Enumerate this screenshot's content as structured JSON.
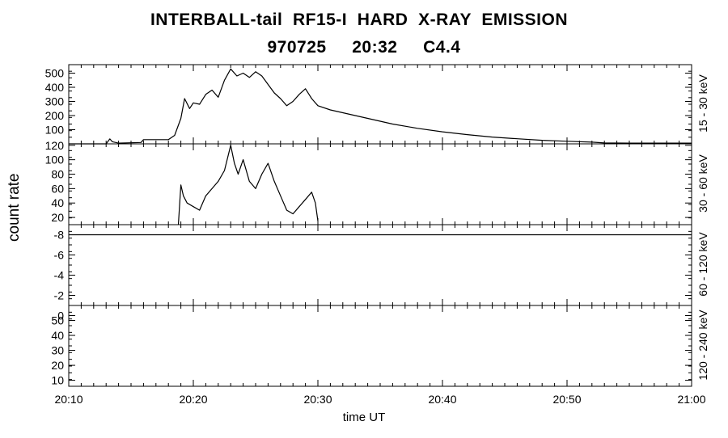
{
  "chart_data": {
    "type": "line",
    "title": "INTERBALL-tail  RF15-I  HARD  X-RAY  EMISSION",
    "subtitle": "970725     20:32     C4.4",
    "ylabel": "count rate",
    "xlabel": "time UT",
    "xlim": [
      "20:10",
      "21:00"
    ],
    "x_ticks": [
      "20:10",
      "20:20",
      "20:30",
      "20:40",
      "20:50",
      "21:00"
    ],
    "panels": [
      {
        "channel": "15 - 30 keV",
        "ylim": [
          0,
          560
        ],
        "y_ticks": [
          "100",
          "200",
          "300",
          "400",
          "500"
        ],
        "series": [
          {
            "x": [
              "20:10",
              "20:13",
              "20:13.3",
              "20:13.5",
              "20:14",
              "20:15.8",
              "20:16",
              "20:18",
              "20:18.5",
              "20:19",
              "20:19.3",
              "20:19.7",
              "20:20",
              "20:20.5",
              "20:21",
              "20:21.5",
              "20:22",
              "20:22.5",
              "20:23",
              "20:23.5",
              "20:24",
              "20:24.5",
              "20:25",
              "20:25.5",
              "20:26",
              "20:26.5",
              "20:27",
              "20:27.5",
              "20:28",
              "20:28.5",
              "20:29",
              "20:29.5",
              "20:30",
              "20:31",
              "20:32",
              "20:33",
              "20:34",
              "20:35",
              "20:36",
              "20:38",
              "20:40",
              "20:42",
              "20:44",
              "20:46",
              "20:48",
              "20:50",
              "20:52",
              "20:53",
              "20:55",
              "21:00"
            ],
            "y": [
              0,
              0,
              35,
              15,
              5,
              10,
              30,
              30,
              60,
              180,
              320,
              250,
              290,
              280,
              350,
              380,
              330,
              450,
              530,
              480,
              500,
              470,
              510,
              480,
              420,
              360,
              320,
              270,
              300,
              350,
              390,
              320,
              270,
              240,
              220,
              200,
              180,
              160,
              140,
              110,
              85,
              65,
              48,
              36,
              25,
              18,
              12,
              6,
              5,
              5
            ]
          }
        ]
      },
      {
        "channel": "30 - 60 keV",
        "ylim": [
          10,
          122
        ],
        "y_ticks": [
          "20",
          "40",
          "60",
          "80",
          "100",
          "120"
        ],
        "series": [
          {
            "x": [
              "20:18.8",
              "20:19",
              "20:19.2",
              "20:19.5",
              "20:20",
              "20:20.5",
              "20:21",
              "20:21.5",
              "20:22",
              "20:22.5",
              "20:23",
              "20:23.3",
              "20:23.6",
              "20:24",
              "20:24.5",
              "20:25",
              "20:25.5",
              "20:26",
              "20:26.5",
              "20:27",
              "20:27.5",
              "20:28",
              "20:28.5",
              "20:29",
              "20:29.5",
              "20:29.8",
              "20:30"
            ],
            "y": [
              10,
              65,
              50,
              40,
              35,
              30,
              50,
              60,
              70,
              85,
              120,
              95,
              80,
              100,
              70,
              60,
              80,
              95,
              70,
              50,
              30,
              25,
              35,
              45,
              55,
              40,
              15
            ]
          }
        ]
      },
      {
        "channel": "60 - 120 keV",
        "ylim": [
          -1,
          -9
        ],
        "y_ticks": [
          "-8",
          "-6",
          "-4",
          "-2",
          "0"
        ],
        "series": [
          {
            "x": [
              "20:10",
              "21:00"
            ],
            "y": [
              -8,
              -8
            ]
          }
        ]
      },
      {
        "channel": "120 - 240 keV",
        "ylim": [
          6,
          60
        ],
        "y_ticks": [
          "10",
          "20",
          "30",
          "40",
          "50"
        ],
        "series": []
      }
    ]
  }
}
